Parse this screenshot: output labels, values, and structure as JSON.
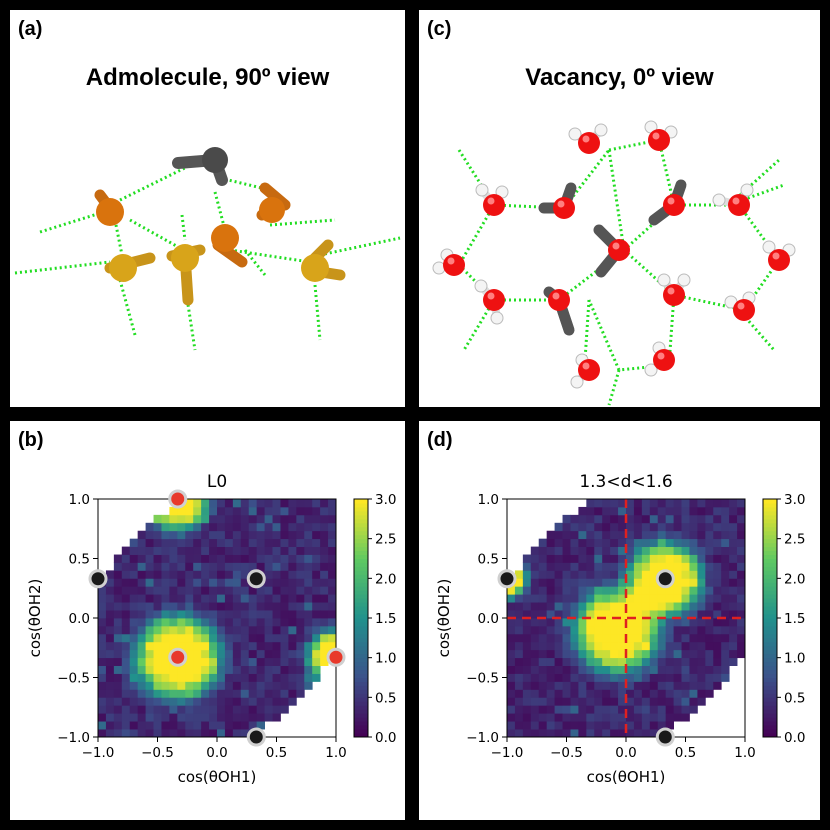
{
  "panels": {
    "a": {
      "label": "(a)",
      "title": "Admolecule, 90º view"
    },
    "c": {
      "label": "(c)",
      "title": "Vacancy, 0º view"
    },
    "b": {
      "label": "(b)"
    },
    "d": {
      "label": "(d)"
    }
  },
  "colors": {
    "hbond": "#22dd22",
    "oxygen": "#ee1111",
    "hydrogen": "#f4f4f4",
    "gray_molecule": "#555555",
    "orange_molecule": "#d9730d",
    "gold_molecule": "#d8a41a",
    "colormap": [
      "#440154",
      "#3b528b",
      "#21918c",
      "#5ec962",
      "#fde725"
    ],
    "marker_red": "#e8392b",
    "marker_black": "#1a1a1a",
    "marker_ring": "#d0d0d0",
    "dashed_lines": "#e02020"
  },
  "chart_data": [
    {
      "id": "b",
      "type": "heatmap",
      "title": "L0",
      "xlabel": "cos(θOH1)",
      "ylabel": "cos(θOH2)",
      "xlim": [
        -1.0,
        1.0
      ],
      "ylim": [
        -1.0,
        1.0
      ],
      "xticks": [
        "−1.0",
        "−0.5",
        "0.0",
        "0.5",
        "1.0"
      ],
      "yticks": [
        "−1.0",
        "−0.5",
        "0.0",
        "0.5",
        "1.0"
      ],
      "colorbar": {
        "min": 0.0,
        "max": 3.0,
        "ticks": [
          "0.0",
          "0.5",
          "1.0",
          "1.5",
          "2.0",
          "2.5",
          "3.0"
        ]
      },
      "blobs": [
        {
          "x": -0.33,
          "y": -0.33,
          "r": 0.3,
          "peak": 3.0
        },
        {
          "x": -0.33,
          "y": 1.0,
          "r": 0.22,
          "peak": 3.0
        },
        {
          "x": 1.0,
          "y": -0.33,
          "r": 0.2,
          "peak": 3.0
        },
        {
          "x": -0.6,
          "y": 0.95,
          "r": 0.12,
          "peak": 2.4
        }
      ],
      "markers": [
        {
          "x": -0.33,
          "y": -0.33,
          "fill": "red"
        },
        {
          "x": -0.33,
          "y": 1.0,
          "fill": "red"
        },
        {
          "x": 1.0,
          "y": -0.33,
          "fill": "red"
        },
        {
          "x": -1.0,
          "y": 0.33,
          "fill": "black"
        },
        {
          "x": 0.33,
          "y": 0.33,
          "fill": "black"
        },
        {
          "x": 0.33,
          "y": -1.0,
          "fill": "black"
        }
      ],
      "dashed": false
    },
    {
      "id": "d",
      "type": "heatmap",
      "title": "1.3<d<1.6",
      "xlabel": "cos(θOH1)",
      "ylabel": "cos(θOH2)",
      "xlim": [
        -1.0,
        1.0
      ],
      "ylim": [
        -1.0,
        1.0
      ],
      "xticks": [
        "−1.0",
        "−0.5",
        "0.0",
        "0.5",
        "1.0"
      ],
      "yticks": [
        "−1.0",
        "−0.5",
        "0.0",
        "0.5",
        "1.0"
      ],
      "colorbar": {
        "min": 0.0,
        "max": 3.0,
        "ticks": [
          "0.0",
          "0.5",
          "1.0",
          "1.5",
          "2.0",
          "2.5",
          "3.0"
        ]
      },
      "blobs": [
        {
          "x": 0.33,
          "y": 0.33,
          "r": 0.26,
          "peak": 3.0
        },
        {
          "x": -0.08,
          "y": -0.1,
          "r": 0.3,
          "peak": 3.0
        },
        {
          "x": -1.0,
          "y": 0.33,
          "r": 0.14,
          "peak": 3.0
        }
      ],
      "markers": [
        {
          "x": -1.0,
          "y": 0.33,
          "fill": "black"
        },
        {
          "x": 0.33,
          "y": 0.33,
          "fill": "black"
        },
        {
          "x": 0.33,
          "y": -1.0,
          "fill": "black"
        }
      ],
      "dashed": true
    }
  ]
}
